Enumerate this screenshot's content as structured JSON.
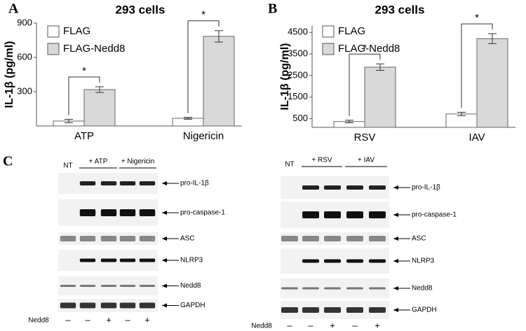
{
  "panels": [
    "A",
    "B",
    "C"
  ],
  "chart_data": [
    {
      "type": "bar",
      "title": "293 cells",
      "y_label": "IL-1β (pg/ml)",
      "categories": [
        "ATP",
        "Nigericin"
      ],
      "series": [
        {
          "name": "FLAG",
          "color": "#ffffff",
          "values": [
            43,
            67
          ],
          "errors": [
            15,
            8
          ]
        },
        {
          "name": "FLAG-Nedd8",
          "color": "#d9d9d9",
          "values": [
            318,
            784
          ],
          "errors": [
            25,
            50
          ]
        }
      ],
      "annotations": [
        "*",
        "*"
      ],
      "ylim": [
        0,
        900
      ],
      "yticks": [
        300,
        600,
        900
      ]
    },
    {
      "type": "bar",
      "title": "293 cells",
      "y_label": "IL-1β (pg/ml)",
      "categories": [
        "RSV",
        "IAV"
      ],
      "series": [
        {
          "name": "FLAG",
          "color": "#ffffff",
          "values": [
            370,
            720
          ],
          "errors": [
            60,
            80
          ]
        },
        {
          "name": "FLAG-Nedd8",
          "color": "#d9d9d9",
          "values": [
            2890,
            4210
          ],
          "errors": [
            150,
            230
          ]
        }
      ],
      "annotations": [
        "*",
        "*"
      ],
      "ylim": [
        100,
        4800
      ],
      "yticks": [
        500,
        1500,
        2500,
        3500,
        4500
      ]
    }
  ],
  "blots": [
    {
      "header": [
        "NT",
        "+ ATP",
        "+ Nigericin"
      ],
      "rows": [
        "pro-IL-1β",
        "pro-caspase-1",
        "ASC",
        "NLRP3",
        "Nedd8",
        "GAPDH"
      ],
      "treatment_label": "Nedd8",
      "signs": [
        "–",
        "–",
        "+",
        "–",
        "+"
      ]
    },
    {
      "header": [
        "NT",
        "+ RSV",
        "+ IAV"
      ],
      "rows": [
        "pro-IL-1β",
        "pro-caspase-1",
        "ASC",
        "NLRP3",
        "Nedd8",
        "GAPDH"
      ],
      "treatment_label": "Nedd8",
      "signs": [
        "–",
        "–",
        "+",
        "–",
        "+"
      ]
    }
  ]
}
